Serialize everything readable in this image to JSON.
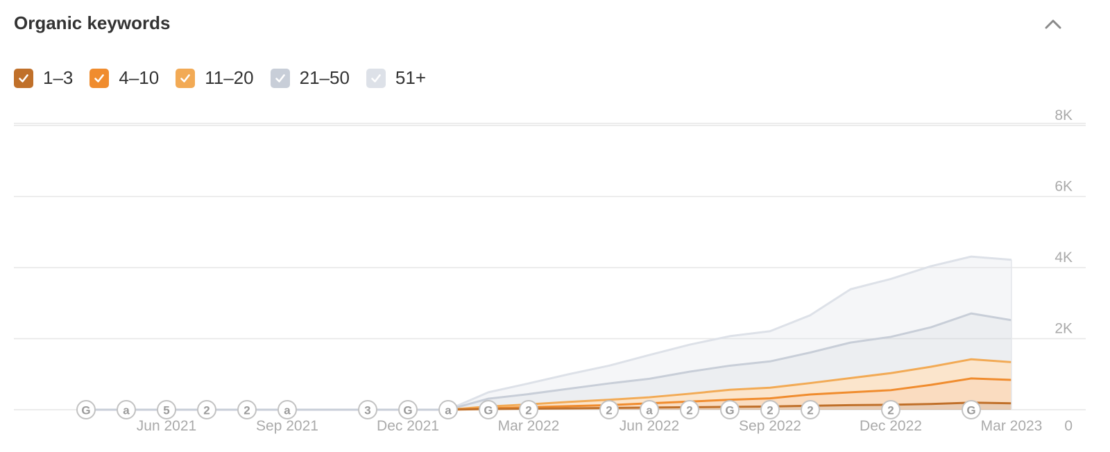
{
  "header": {
    "title": "Organic keywords",
    "collapse_icon": "chevron-up-icon"
  },
  "legend": [
    {
      "label": "1–3",
      "color": "#c0702a",
      "checked": true
    },
    {
      "label": "4–10",
      "color": "#f08c2e",
      "checked": true
    },
    {
      "label": "11–20",
      "color": "#f2aa55",
      "checked": true
    },
    {
      "label": "21–50",
      "color": "#c8ced8",
      "checked": true
    },
    {
      "label": "51+",
      "color": "#dde1e8",
      "checked": true
    }
  ],
  "chart_data": {
    "type": "area",
    "stacked": true,
    "x_ticks": [
      "Jun 2021",
      "Sep 2021",
      "Dec 2021",
      "Mar 2022",
      "Jun 2022",
      "Sep 2022",
      "Dec 2022",
      "Mar 2023"
    ],
    "x": [
      "2022-01",
      "2022-02",
      "2022-03",
      "2022-04",
      "2022-05",
      "2022-06",
      "2022-07",
      "2022-08",
      "2022-09",
      "2022-10",
      "2022-11",
      "2022-12",
      "2023-01",
      "2023-02",
      "2023-03"
    ],
    "series": [
      {
        "name": "1–3",
        "color": "#c0702a",
        "values": [
          0,
          20,
          30,
          40,
          50,
          60,
          70,
          80,
          90,
          110,
          130,
          140,
          160,
          200,
          180
        ]
      },
      {
        "name": "4–10",
        "color": "#f08c2e",
        "values": [
          0,
          20,
          40,
          60,
          80,
          120,
          160,
          200,
          230,
          320,
          360,
          410,
          540,
          680,
          660
        ]
      },
      {
        "name": "11–20",
        "color": "#f2aa55",
        "values": [
          0,
          50,
          80,
          120,
          150,
          170,
          220,
          280,
          300,
          320,
          400,
          480,
          510,
          540,
          500
        ]
      },
      {
        "name": "21–50",
        "color": "#c8ced8",
        "values": [
          0,
          220,
          290,
          370,
          460,
          520,
          620,
          680,
          740,
          860,
          1000,
          1020,
          1110,
          1290,
          1180
        ]
      },
      {
        "name": "51+",
        "color": "#dde1e8",
        "values": [
          0,
          180,
          300,
          410,
          500,
          670,
          760,
          830,
          850,
          1050,
          1500,
          1630,
          1720,
          1600,
          1700
        ]
      }
    ],
    "baseline_markers": [
      "G",
      "a",
      "5",
      "2",
      "2",
      "a",
      "3",
      "G",
      "a",
      "G",
      "2",
      "2",
      "a",
      "2",
      "G",
      "2",
      "2",
      "2",
      "G"
    ],
    "y_ticks": [
      "0",
      "2K",
      "4K",
      "6K",
      "8K"
    ],
    "ylim": [
      0,
      8000
    ],
    "grid": true
  }
}
